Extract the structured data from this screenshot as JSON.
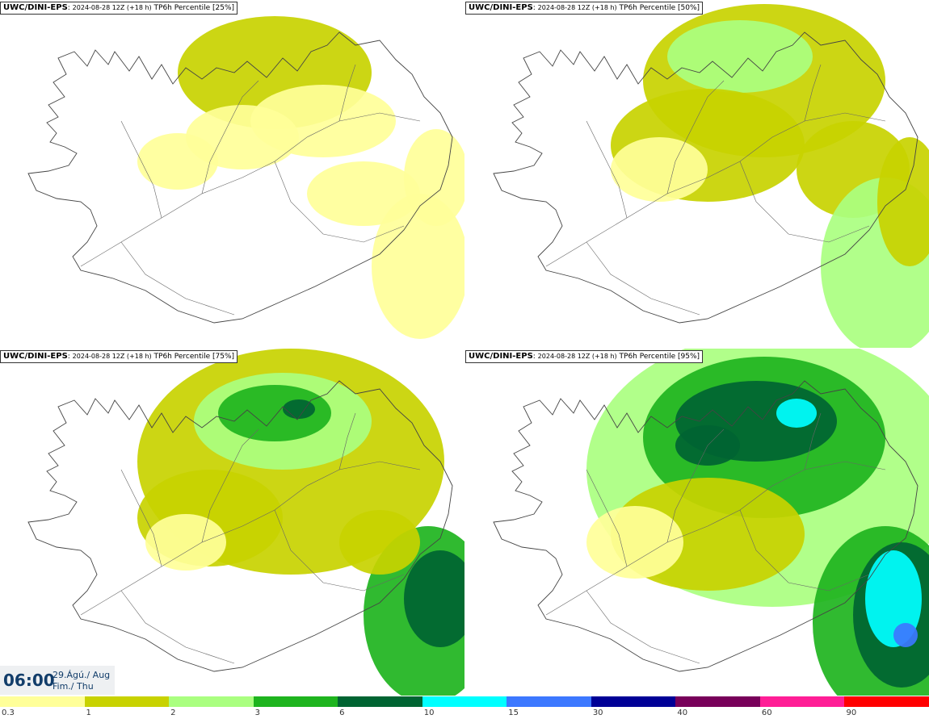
{
  "panels": [
    {
      "model": "UWC/DINI-EPS",
      "meta": "2024-08-28 12Z (+18 h)",
      "field": "TP6h Percentile [25%]",
      "intensity": 0
    },
    {
      "model": "UWC/DINI-EPS",
      "meta": "2024-08-28 12Z (+18 h)",
      "field": "TP6h Percentile [50%]",
      "intensity": 1
    },
    {
      "model": "UWC/DINI-EPS",
      "meta": "2024-08-28 12Z (+18 h)",
      "field": "TP6h Percentile [75%]",
      "intensity": 2
    },
    {
      "model": "UWC/DINI-EPS",
      "meta": "2024-08-28 12Z (+18 h)",
      "field": "TP6h Percentile [95%]",
      "intensity": 3
    }
  ],
  "valid_time": {
    "time": "06:00",
    "date_line1": "29.Ágú./ Aug",
    "date_line2": "Fim./ Thu"
  },
  "legend": {
    "colors": [
      "#ffff99",
      "#c8d200",
      "#aaff80",
      "#1eb41e",
      "#006432",
      "#00ffff",
      "#3c78ff",
      "#000096",
      "#78005a",
      "#ff1e96",
      "#ff0000"
    ],
    "labels": [
      "0.3",
      "1",
      "2",
      "3",
      "6",
      "10",
      "15",
      "30",
      "40",
      "60",
      "90"
    ]
  }
}
